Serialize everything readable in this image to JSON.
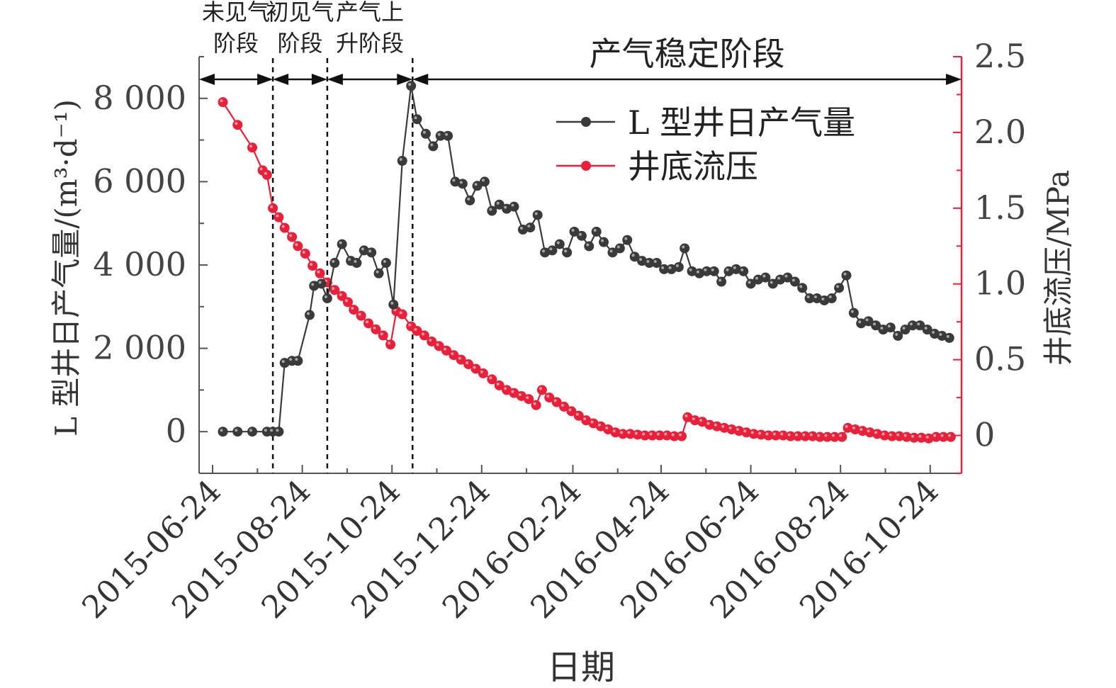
{
  "chart_data": {
    "type": "line",
    "x_tick_labels": [
      "2015-06-24",
      "2015-08-24",
      "2015-10-24",
      "2015-12-24",
      "2016-02-24",
      "2016-04-24",
      "2016-06-24",
      "2016-08-24",
      "2016-10-24"
    ],
    "xlabel": "日期",
    "ylabel_left": "L 型井日产气量/(m³·d⁻¹)",
    "ylabel_right": "井底流压/MPa",
    "ylim_left": [
      -1000,
      9000
    ],
    "ylim_right": [
      -0.25,
      2.5
    ],
    "yticks_left": [
      {
        "v": 0,
        "t": "0"
      },
      {
        "v": 2000,
        "t": "2 000"
      },
      {
        "v": 4000,
        "t": "4 000"
      },
      {
        "v": 6000,
        "t": "6 000"
      },
      {
        "v": 8000,
        "t": "8 000"
      }
    ],
    "yticks_right": [
      {
        "v": 0,
        "t": "0"
      },
      {
        "v": 0.5,
        "t": "0.5"
      },
      {
        "v": 1.0,
        "t": "1.0"
      },
      {
        "v": 1.5,
        "t": "1.5"
      },
      {
        "v": 2.0,
        "t": "2.0"
      },
      {
        "v": 2.5,
        "t": "2.5"
      }
    ],
    "colors": {
      "gas": "#3a3a3a",
      "pressure": "#e8203a",
      "axis_right": "#e8203a"
    },
    "stage_boundaries": [
      "2015-08-04",
      "2015-09-10",
      "2015-11-07"
    ],
    "stages": [
      {
        "line1": "未见气",
        "line2": "阶段"
      },
      {
        "line1": "初见气",
        "line2": "阶段"
      },
      {
        "line1": "产气上",
        "line2": "升阶段"
      },
      {
        "line1": "产气稳定阶段",
        "line2": ""
      }
    ],
    "series": [
      {
        "name": "L 型井日产气量",
        "axis": "left",
        "points": [
          [
            "2015-07-01",
            0
          ],
          [
            "2015-07-11",
            0
          ],
          [
            "2015-07-21",
            0
          ],
          [
            "2015-07-31",
            0
          ],
          [
            "2015-08-04",
            0
          ],
          [
            "2015-08-08",
            0
          ],
          [
            "2015-08-12",
            1650
          ],
          [
            "2015-08-17",
            1700
          ],
          [
            "2015-08-21",
            1700
          ],
          [
            "2015-08-29",
            2800
          ],
          [
            "2015-09-01",
            3500
          ],
          [
            "2015-09-06",
            3550
          ],
          [
            "2015-09-10",
            3200
          ],
          [
            "2015-09-15",
            4050
          ],
          [
            "2015-09-20",
            4500
          ],
          [
            "2015-09-26",
            4100
          ],
          [
            "2015-09-30",
            4050
          ],
          [
            "2015-10-05",
            4350
          ],
          [
            "2015-10-10",
            4300
          ],
          [
            "2015-10-15",
            3800
          ],
          [
            "2015-10-20",
            4050
          ],
          [
            "2015-10-25",
            3050
          ],
          [
            "2015-10-31",
            6500
          ],
          [
            "2015-11-06",
            8300
          ],
          [
            "2015-11-10",
            7500
          ],
          [
            "2015-11-16",
            7150
          ],
          [
            "2015-11-21",
            6850
          ],
          [
            "2015-11-26",
            7100
          ],
          [
            "2015-12-01",
            7100
          ],
          [
            "2015-12-06",
            6000
          ],
          [
            "2015-12-11",
            5950
          ],
          [
            "2015-12-16",
            5550
          ],
          [
            "2015-12-21",
            5900
          ],
          [
            "2015-12-26",
            6000
          ],
          [
            "2015-12-31",
            5300
          ],
          [
            "2016-01-05",
            5450
          ],
          [
            "2016-01-10",
            5350
          ],
          [
            "2016-01-15",
            5400
          ],
          [
            "2016-01-21",
            4850
          ],
          [
            "2016-01-26",
            4900
          ],
          [
            "2016-01-31",
            5200
          ],
          [
            "2016-02-05",
            4300
          ],
          [
            "2016-02-10",
            4350
          ],
          [
            "2016-02-15",
            4500
          ],
          [
            "2016-02-20",
            4300
          ],
          [
            "2016-02-25",
            4800
          ],
          [
            "2016-03-01",
            4700
          ],
          [
            "2016-03-06",
            4450
          ],
          [
            "2016-03-11",
            4800
          ],
          [
            "2016-03-16",
            4550
          ],
          [
            "2016-03-22",
            4300
          ],
          [
            "2016-03-27",
            4400
          ],
          [
            "2016-04-01",
            4600
          ],
          [
            "2016-04-06",
            4200
          ],
          [
            "2016-04-11",
            4100
          ],
          [
            "2016-04-16",
            4050
          ],
          [
            "2016-04-21",
            4050
          ],
          [
            "2016-04-26",
            3900
          ],
          [
            "2016-05-01",
            3900
          ],
          [
            "2016-05-06",
            3950
          ],
          [
            "2016-05-10",
            4400
          ],
          [
            "2016-05-15",
            3850
          ],
          [
            "2016-05-20",
            3800
          ],
          [
            "2016-05-25",
            3850
          ],
          [
            "2016-05-30",
            3850
          ],
          [
            "2016-06-04",
            3600
          ],
          [
            "2016-06-09",
            3850
          ],
          [
            "2016-06-14",
            3900
          ],
          [
            "2016-06-19",
            3850
          ],
          [
            "2016-06-24",
            3550
          ],
          [
            "2016-06-29",
            3650
          ],
          [
            "2016-07-04",
            3700
          ],
          [
            "2016-07-09",
            3550
          ],
          [
            "2016-07-14",
            3650
          ],
          [
            "2016-07-19",
            3700
          ],
          [
            "2016-07-24",
            3600
          ],
          [
            "2016-07-29",
            3450
          ],
          [
            "2016-08-03",
            3200
          ],
          [
            "2016-08-08",
            3200
          ],
          [
            "2016-08-13",
            3150
          ],
          [
            "2016-08-18",
            3200
          ],
          [
            "2016-08-23",
            3450
          ],
          [
            "2016-08-28",
            3750
          ],
          [
            "2016-09-02",
            2850
          ],
          [
            "2016-09-07",
            2600
          ],
          [
            "2016-09-12",
            2650
          ],
          [
            "2016-09-17",
            2550
          ],
          [
            "2016-09-22",
            2450
          ],
          [
            "2016-09-27",
            2500
          ],
          [
            "2016-10-02",
            2300
          ],
          [
            "2016-10-07",
            2450
          ],
          [
            "2016-10-12",
            2550
          ],
          [
            "2016-10-17",
            2550
          ],
          [
            "2016-10-22",
            2450
          ],
          [
            "2016-10-27",
            2350
          ],
          [
            "2016-11-01",
            2300
          ],
          [
            "2016-11-06",
            2250
          ]
        ]
      },
      {
        "name": "井底流压",
        "axis": "right",
        "points": [
          [
            "2015-07-01",
            2.2
          ],
          [
            "2015-07-11",
            2.05
          ],
          [
            "2015-07-21",
            1.9
          ],
          [
            "2015-07-28",
            1.75
          ],
          [
            "2015-07-31",
            1.72
          ],
          [
            "2015-08-04",
            1.5
          ],
          [
            "2015-08-08",
            1.44
          ],
          [
            "2015-08-12",
            1.37
          ],
          [
            "2015-08-17",
            1.31
          ],
          [
            "2015-08-21",
            1.25
          ],
          [
            "2015-08-26",
            1.2
          ],
          [
            "2015-08-31",
            1.12
          ],
          [
            "2015-09-05",
            1.07
          ],
          [
            "2015-09-10",
            1.01
          ],
          [
            "2015-09-15",
            0.96
          ],
          [
            "2015-09-20",
            0.92
          ],
          [
            "2015-09-24",
            0.88
          ],
          [
            "2015-09-28",
            0.83
          ],
          [
            "2015-10-03",
            0.79
          ],
          [
            "2015-10-08",
            0.74
          ],
          [
            "2015-10-13",
            0.7
          ],
          [
            "2015-10-18",
            0.66
          ],
          [
            "2015-10-23",
            0.6
          ],
          [
            "2015-10-27",
            0.82
          ],
          [
            "2015-10-31",
            0.8
          ],
          [
            "2015-11-06",
            0.72
          ],
          [
            "2015-11-10",
            0.69
          ],
          [
            "2015-11-15",
            0.66
          ],
          [
            "2015-11-20",
            0.62
          ],
          [
            "2015-11-25",
            0.59
          ],
          [
            "2015-11-30",
            0.56
          ],
          [
            "2015-12-05",
            0.53
          ],
          [
            "2015-12-10",
            0.5
          ],
          [
            "2015-12-15",
            0.47
          ],
          [
            "2015-12-20",
            0.44
          ],
          [
            "2015-12-25",
            0.41
          ],
          [
            "2015-12-31",
            0.37
          ],
          [
            "2016-01-05",
            0.33
          ],
          [
            "2016-01-10",
            0.3
          ],
          [
            "2016-01-15",
            0.28
          ],
          [
            "2016-01-20",
            0.26
          ],
          [
            "2016-01-25",
            0.24
          ],
          [
            "2016-01-30",
            0.2
          ],
          [
            "2016-02-03",
            0.3
          ],
          [
            "2016-02-08",
            0.25
          ],
          [
            "2016-02-13",
            0.22
          ],
          [
            "2016-02-18",
            0.19
          ],
          [
            "2016-02-23",
            0.16
          ],
          [
            "2016-02-28",
            0.13
          ],
          [
            "2016-03-04",
            0.1
          ],
          [
            "2016-03-09",
            0.08
          ],
          [
            "2016-03-14",
            0.06
          ],
          [
            "2016-03-19",
            0.04
          ],
          [
            "2016-03-24",
            0.02
          ],
          [
            "2016-03-29",
            0.01
          ],
          [
            "2016-04-03",
            0.01
          ],
          [
            "2016-04-08",
            0.005
          ],
          [
            "2016-04-13",
            0.0
          ],
          [
            "2016-04-18",
            0.0
          ],
          [
            "2016-04-23",
            0.0
          ],
          [
            "2016-04-28",
            0.0
          ],
          [
            "2016-05-03",
            -0.005
          ],
          [
            "2016-05-08",
            -0.005
          ],
          [
            "2016-05-12",
            0.12
          ],
          [
            "2016-05-17",
            0.1
          ],
          [
            "2016-05-22",
            0.09
          ],
          [
            "2016-05-27",
            0.07
          ],
          [
            "2016-06-01",
            0.06
          ],
          [
            "2016-06-06",
            0.05
          ],
          [
            "2016-06-11",
            0.04
          ],
          [
            "2016-06-16",
            0.03
          ],
          [
            "2016-06-21",
            0.02
          ],
          [
            "2016-06-26",
            0.01
          ],
          [
            "2016-07-01",
            0.005
          ],
          [
            "2016-07-06",
            0.0
          ],
          [
            "2016-07-11",
            0.0
          ],
          [
            "2016-07-16",
            0.0
          ],
          [
            "2016-07-21",
            -0.005
          ],
          [
            "2016-07-26",
            -0.005
          ],
          [
            "2016-07-31",
            -0.005
          ],
          [
            "2016-08-05",
            -0.005
          ],
          [
            "2016-08-10",
            -0.01
          ],
          [
            "2016-08-15",
            -0.01
          ],
          [
            "2016-08-20",
            -0.01
          ],
          [
            "2016-08-25",
            -0.01
          ],
          [
            "2016-08-29",
            0.05
          ],
          [
            "2016-09-03",
            0.04
          ],
          [
            "2016-09-08",
            0.03
          ],
          [
            "2016-09-13",
            0.02
          ],
          [
            "2016-09-18",
            0.01
          ],
          [
            "2016-09-23",
            0.0
          ],
          [
            "2016-09-28",
            -0.005
          ],
          [
            "2016-10-03",
            -0.005
          ],
          [
            "2016-10-08",
            -0.01
          ],
          [
            "2016-10-13",
            -0.015
          ],
          [
            "2016-10-18",
            -0.015
          ],
          [
            "2016-10-23",
            -0.02
          ],
          [
            "2016-10-28",
            -0.01
          ],
          [
            "2016-11-02",
            -0.01
          ],
          [
            "2016-11-07",
            -0.01
          ]
        ]
      }
    ]
  }
}
